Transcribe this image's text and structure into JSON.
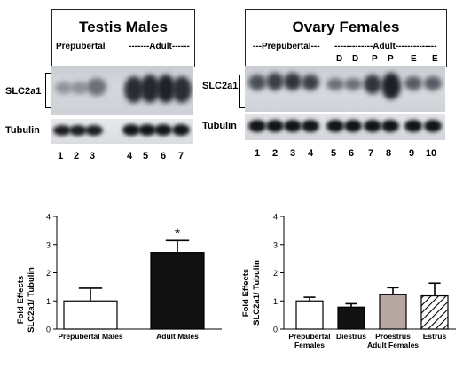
{
  "testis": {
    "title": "Testis Males",
    "group_prepubertal": "Prepubertal",
    "group_adult": "-------Adult------",
    "label_slc": "SLC2a1",
    "label_tubulin": "Tubulin",
    "lanes": [
      "1",
      "2",
      "3",
      "4",
      "5",
      "6",
      "7"
    ]
  },
  "ovary": {
    "title": "Ovary Females",
    "group_prepubertal": "---Prepubertal---",
    "group_adult": "-------------Adult--------------",
    "stages": [
      "D",
      "D",
      "P",
      "P",
      "E",
      "E"
    ],
    "label_slc": "SLC2a1",
    "label_tubulin": "Tubulin",
    "lanes": [
      "1",
      "2",
      "3",
      "4",
      "5",
      "6",
      "7",
      "8",
      "9",
      "10"
    ]
  },
  "chart_data": [
    {
      "type": "bar",
      "ylabel_line1": "Fold Effects",
      "ylabel_line2": "SLC2a1/ Tubulin",
      "categories": [
        "Prepubertal Males",
        "Adult Males"
      ],
      "values": [
        1.0,
        2.72
      ],
      "errors": [
        0.45,
        0.42
      ],
      "fills": [
        "#ffffff",
        "#111111"
      ],
      "significance": [
        "",
        "*"
      ],
      "ylim": [
        0,
        4
      ],
      "yticks": [
        "0",
        "1",
        "2",
        "3",
        "4"
      ]
    },
    {
      "type": "bar",
      "ylabel_line1": "Fold Effects",
      "ylabel_line2": "SLC2a1/ Tubulin",
      "categories": [
        "Prepubertal Females",
        "Diestrus",
        "Proestrus",
        "Estrus"
      ],
      "category_label_lines": [
        [
          "Prepubertal",
          "Females"
        ],
        [
          "Diestrus"
        ],
        [
          "Proestrus"
        ],
        [
          "Estrus"
        ]
      ],
      "group_label": "Adult Females",
      "values": [
        1.0,
        0.78,
        1.22,
        1.18
      ],
      "errors": [
        0.13,
        0.12,
        0.25,
        0.45
      ],
      "fills": [
        "#ffffff",
        "#111111",
        "#b8a8a4",
        "hatch"
      ],
      "ylim": [
        0,
        4
      ],
      "yticks": [
        "0",
        "1",
        "2",
        "3",
        "4"
      ]
    }
  ]
}
